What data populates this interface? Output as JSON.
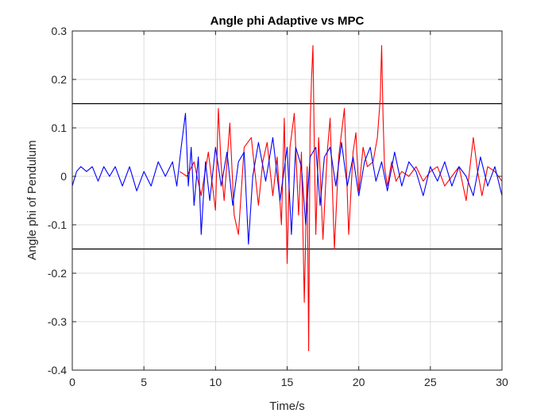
{
  "chart_data": {
    "type": "line",
    "title": "Angle phi Adaptive vs MPC",
    "xlabel": "Time/s",
    "ylabel": "Angle phi of Pendulum",
    "xlim": [
      0,
      30
    ],
    "ylim": [
      -0.4,
      0.3
    ],
    "xticks": [
      0,
      5,
      10,
      15,
      20,
      25,
      30
    ],
    "yticks": [
      -0.4,
      -0.3,
      -0.2,
      -0.1,
      0,
      0.1,
      0.2,
      0.3
    ],
    "xtick_labels": [
      "0",
      "5",
      "10",
      "15",
      "20",
      "25",
      "30"
    ],
    "ytick_labels": [
      "-0.4",
      "-0.3",
      "-0.2",
      "-0.1",
      "0",
      "0.1",
      "0.2",
      "0.3"
    ],
    "grid": true,
    "reference_lines": [
      0.15,
      -0.15
    ],
    "series": [
      {
        "color": "#ff0000",
        "x": [
          7.5,
          8.0,
          8.5,
          9.0,
          9.5,
          10.0,
          10.2,
          10.4,
          10.6,
          11.0,
          11.3,
          11.6,
          12.0,
          12.5,
          13.0,
          13.3,
          13.6,
          14.0,
          14.3,
          14.6,
          14.8,
          15.0,
          15.2,
          15.5,
          15.8,
          16.0,
          16.2,
          16.4,
          16.5,
          16.6,
          16.7,
          16.8,
          16.9,
          17.0,
          17.2,
          17.5,
          17.8,
          18.0,
          18.3,
          18.6,
          19.0,
          19.3,
          19.6,
          19.8,
          20.0,
          20.3,
          20.6,
          21.0,
          21.3,
          21.5,
          21.6,
          21.7,
          21.8,
          22.0,
          22.3,
          22.6,
          23.0,
          23.5,
          24.0,
          24.5,
          25.0,
          25.5,
          26.0,
          26.5,
          27.0,
          27.5,
          28.0,
          28.3,
          28.6,
          29.0,
          29.5,
          30.0
        ],
        "y": [
          0.01,
          0.0,
          0.03,
          -0.04,
          0.05,
          -0.07,
          0.14,
          0.02,
          -0.05,
          0.11,
          -0.08,
          -0.12,
          0.06,
          0.08,
          -0.06,
          0.03,
          0.07,
          -0.04,
          0.04,
          -0.1,
          0.12,
          -0.18,
          0.06,
          0.13,
          -0.08,
          0.05,
          -0.26,
          0.02,
          -0.36,
          0.1,
          0.2,
          0.27,
          0.05,
          -0.12,
          0.08,
          -0.13,
          0.05,
          0.12,
          -0.15,
          0.04,
          0.14,
          -0.12,
          0.05,
          0.09,
          -0.03,
          0.06,
          0.02,
          0.03,
          0.08,
          0.16,
          0.27,
          0.12,
          0.02,
          -0.02,
          0.03,
          -0.01,
          0.01,
          0.0,
          0.02,
          -0.01,
          0.01,
          0.02,
          -0.02,
          0.0,
          0.02,
          -0.05,
          0.08,
          0.01,
          -0.04,
          0.02,
          0.01,
          -0.01
        ]
      },
      {
        "color": "#0000ff",
        "x": [
          0.0,
          0.3,
          0.6,
          1.0,
          1.4,
          1.8,
          2.2,
          2.6,
          3.0,
          3.5,
          4.0,
          4.5,
          5.0,
          5.5,
          6.0,
          6.5,
          7.0,
          7.3,
          7.6,
          7.9,
          8.1,
          8.3,
          8.5,
          8.8,
          9.0,
          9.3,
          9.6,
          10.0,
          10.4,
          10.8,
          11.2,
          11.6,
          12.0,
          12.3,
          12.6,
          13.0,
          13.5,
          14.0,
          14.5,
          15.0,
          15.3,
          15.6,
          16.0,
          16.3,
          16.6,
          17.0,
          17.3,
          17.6,
          18.0,
          18.4,
          18.8,
          19.2,
          19.6,
          20.0,
          20.4,
          20.8,
          21.2,
          21.6,
          22.0,
          22.5,
          23.0,
          23.5,
          24.0,
          24.5,
          25.0,
          25.5,
          26.0,
          26.5,
          27.0,
          27.5,
          28.0,
          28.5,
          29.0,
          29.5,
          30.0
        ],
        "y": [
          -0.02,
          0.01,
          0.02,
          0.01,
          0.02,
          -0.01,
          0.02,
          0.0,
          0.02,
          -0.02,
          0.02,
          -0.03,
          0.01,
          -0.02,
          0.03,
          0.0,
          0.03,
          -0.02,
          0.06,
          0.13,
          -0.02,
          0.06,
          -0.06,
          0.04,
          -0.12,
          0.03,
          -0.05,
          0.06,
          -0.02,
          0.05,
          -0.06,
          0.03,
          0.05,
          -0.14,
          0.0,
          0.07,
          -0.01,
          0.08,
          -0.05,
          0.06,
          -0.12,
          0.06,
          0.02,
          -0.1,
          0.04,
          0.06,
          -0.06,
          0.04,
          0.06,
          -0.02,
          0.07,
          -0.02,
          0.04,
          -0.04,
          0.03,
          0.06,
          -0.01,
          0.03,
          -0.03,
          0.05,
          -0.02,
          0.03,
          0.01,
          -0.04,
          0.02,
          -0.01,
          0.03,
          -0.02,
          0.02,
          0.0,
          -0.04,
          0.04,
          -0.02,
          0.02,
          -0.04
        ]
      }
    ]
  }
}
